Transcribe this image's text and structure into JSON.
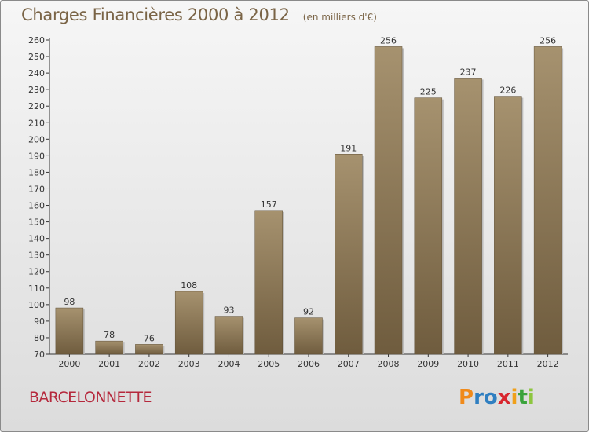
{
  "chart_data": {
    "type": "bar",
    "title": "Charges Financières 2000 à 2012",
    "subtitle": "(en milliers d'€)",
    "categories": [
      "2000",
      "2001",
      "2002",
      "2003",
      "2004",
      "2005",
      "2006",
      "2007",
      "2008",
      "2009",
      "2010",
      "2011",
      "2012"
    ],
    "values": [
      98,
      78,
      76,
      108,
      93,
      157,
      92,
      191,
      256,
      225,
      237,
      226,
      256
    ],
    "ylim": [
      70,
      260
    ],
    "yticks": [
      70,
      80,
      90,
      100,
      110,
      120,
      130,
      140,
      150,
      160,
      170,
      180,
      190,
      200,
      210,
      220,
      230,
      240,
      250,
      260
    ],
    "grid": false,
    "bar_color": "#8f7c5c"
  },
  "commune": "BARCELONNETTE",
  "logo": {
    "letters": [
      "P",
      "r",
      "o",
      "x",
      "i",
      "t",
      "i"
    ],
    "colors": [
      "#f08a1a",
      "#2f7fc1",
      "#2f7fc1",
      "#d8262e",
      "#f0a01a",
      "#3aa33c",
      "#8dc63f"
    ]
  }
}
